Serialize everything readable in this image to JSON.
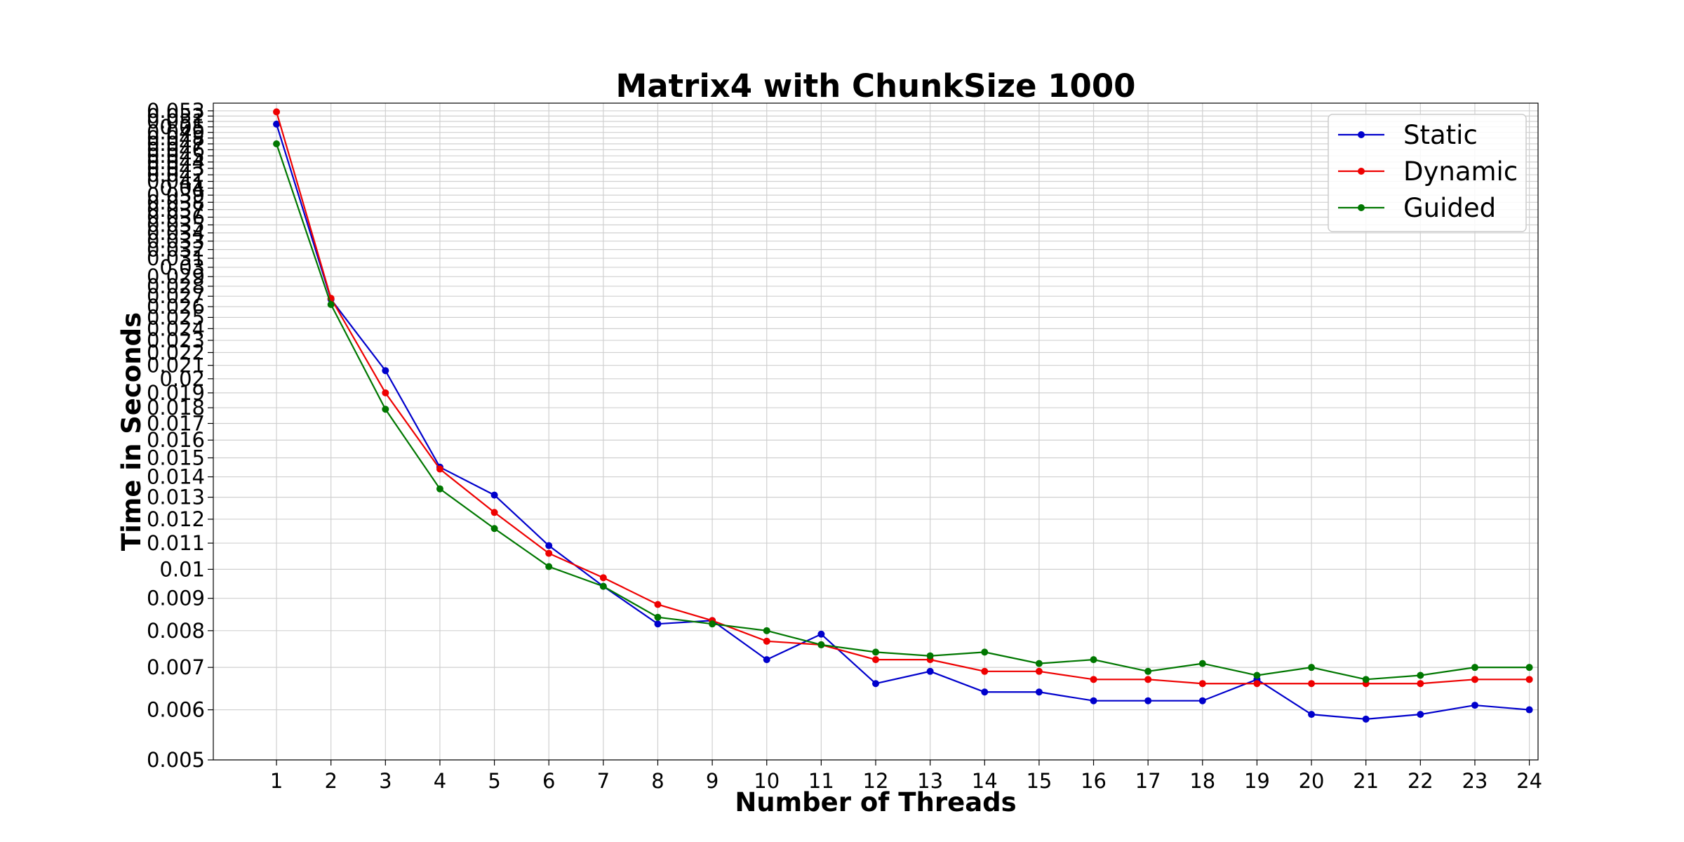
{
  "chart_data": {
    "type": "line",
    "title": "Matrix4 with ChunkSize 1000",
    "xlabel": "Number of Threads",
    "ylabel": "Time in Seconds",
    "yscale": "log",
    "ylim": [
      0.005,
      0.0545
    ],
    "xlim": [
      -0.16,
      24.16
    ],
    "grid": true,
    "legend_position": "top-right",
    "x": [
      1,
      2,
      3,
      4,
      5,
      6,
      7,
      8,
      9,
      10,
      11,
      12,
      13,
      14,
      15,
      16,
      17,
      18,
      19,
      20,
      21,
      22,
      23,
      24
    ],
    "x_tick_labels": [
      "1",
      "2",
      "3",
      "4",
      "5",
      "6",
      "7",
      "8",
      "9",
      "10",
      "11",
      "12",
      "13",
      "14",
      "15",
      "16",
      "17",
      "18",
      "19",
      "20",
      "21",
      "22",
      "23",
      "24"
    ],
    "y_ticks": [
      0.005,
      0.006,
      0.007,
      0.008,
      0.009,
      0.01,
      0.011,
      0.012,
      0.013,
      0.014,
      0.015,
      0.016,
      0.017,
      0.018,
      0.019,
      0.02,
      0.021,
      0.022,
      0.023,
      0.024,
      0.025,
      0.026,
      0.027,
      0.028,
      0.029,
      0.03,
      0.031,
      0.032,
      0.033,
      0.034,
      0.035,
      0.036,
      0.037,
      0.038,
      0.039,
      0.04,
      0.041,
      0.042,
      0.043,
      0.044,
      0.045,
      0.046,
      0.047,
      0.048,
      0.049,
      0.05,
      0.051,
      0.052,
      0.053
    ],
    "y_tick_labels": [
      "0.005",
      "0.006",
      "0.007",
      "0.008",
      "0.009",
      "0.01",
      "0.011",
      "0.012",
      "0.013",
      "0.014",
      "0.015",
      "0.016",
      "0.017",
      "0.018",
      "0.019",
      "0.02",
      "0.021",
      "0.022",
      "0.023",
      "0.024",
      "0.025",
      "0.026",
      "0.027",
      "0.028",
      "0.029",
      "0.03",
      "0.031",
      "0.032",
      "0.033",
      "0.034",
      "0.035",
      "0.036",
      "0.037",
      "0.038",
      "0.039",
      "0.04",
      "0.041",
      "0.042",
      "0.043",
      "0.044",
      "0.045",
      "0.046",
      "0.047",
      "0.048",
      "0.049",
      "0.05",
      "0.051",
      "0.052",
      "0.053"
    ],
    "series": [
      {
        "name": "Static",
        "color": "#0000cc",
        "values": [
          0.0505,
          0.0267,
          0.0206,
          0.0145,
          0.0131,
          0.0109,
          0.0094,
          0.0082,
          0.0083,
          0.0072,
          0.0079,
          0.0066,
          0.0069,
          0.0064,
          0.0064,
          0.0062,
          0.0062,
          0.0062,
          0.0067,
          0.0059,
          0.0058,
          0.0059,
          0.0061,
          0.006
        ]
      },
      {
        "name": "Dynamic",
        "color": "#ee0000",
        "values": [
          0.0528,
          0.0268,
          0.019,
          0.0144,
          0.0123,
          0.0106,
          0.0097,
          0.0088,
          0.0083,
          0.0077,
          0.0076,
          0.0072,
          0.0072,
          0.0069,
          0.0069,
          0.0067,
          0.0067,
          0.0066,
          0.0066,
          0.0066,
          0.0066,
          0.0066,
          0.0067,
          0.0067
        ]
      },
      {
        "name": "Guided",
        "color": "#007700",
        "values": [
          0.047,
          0.0262,
          0.0179,
          0.0134,
          0.0116,
          0.0101,
          0.0094,
          0.0084,
          0.0082,
          0.008,
          0.0076,
          0.0074,
          0.0073,
          0.0074,
          0.0071,
          0.0072,
          0.0069,
          0.0071,
          0.0068,
          0.007,
          0.0067,
          0.0068,
          0.007,
          0.007
        ]
      }
    ]
  }
}
